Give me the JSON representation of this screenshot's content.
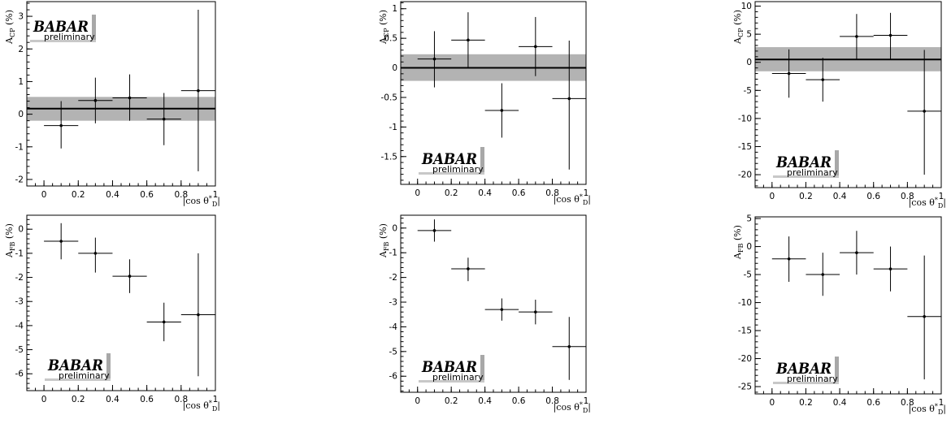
{
  "figure": {
    "logo": {
      "name": "BABAR",
      "sub": "preliminary"
    }
  },
  "chart_data": [
    {
      "type": "scatter",
      "ylabel": "A_CP (%)",
      "xlabel": "|cos θ*_D|",
      "xlim": [
        -0.1,
        1.0
      ],
      "ylim": [
        -2.2,
        3.45
      ],
      "xticks": [
        0,
        0.2,
        0.4,
        0.6,
        0.8,
        1
      ],
      "xtick_labels": [
        "0",
        "0.2",
        "0.4",
        "0.6",
        "0.8",
        "1"
      ],
      "yticks": [
        -2,
        -1,
        0,
        1,
        2,
        3
      ],
      "ytick_labels": [
        "-2",
        "-1",
        "0",
        "1",
        "2",
        "3"
      ],
      "x": [
        0.1,
        0.3,
        0.5,
        0.7,
        0.9
      ],
      "x_err": [
        0.1,
        0.1,
        0.1,
        0.1,
        0.1
      ],
      "y": [
        -0.35,
        0.42,
        0.5,
        -0.15,
        0.72
      ],
      "y_err_low": [
        0.7,
        0.7,
        0.7,
        0.8,
        2.47
      ],
      "y_err_high": [
        0.75,
        0.7,
        0.72,
        0.8,
        2.48
      ],
      "fit": {
        "value": 0.17,
        "band": [
          -0.2,
          0.53
        ]
      },
      "logo_position": "top-left"
    },
    {
      "type": "scatter",
      "ylabel": "A_CP (%)",
      "xlabel": "|cos θ*_D|",
      "xlim": [
        -0.1,
        1.0
      ],
      "ylim": [
        -1.97,
        1.12
      ],
      "xticks": [
        0,
        0.2,
        0.4,
        0.6,
        0.8,
        1
      ],
      "xtick_labels": [
        "0",
        "0.2",
        "0.4",
        "0.6",
        "0.8",
        "1"
      ],
      "yticks": [
        -1.5,
        -1,
        -0.5,
        0,
        0.5,
        1
      ],
      "ytick_labels": [
        "-1.5",
        "-1",
        "-0.5",
        "0",
        "0.5",
        "1"
      ],
      "x": [
        0.1,
        0.3,
        0.5,
        0.7,
        0.9
      ],
      "x_err": [
        0.1,
        0.1,
        0.1,
        0.1,
        0.1
      ],
      "y": [
        0.15,
        0.47,
        -0.72,
        0.36,
        -0.52
      ],
      "y_err_low": [
        0.48,
        0.47,
        0.46,
        0.5,
        1.2
      ],
      "y_err_high": [
        0.47,
        0.47,
        0.46,
        0.5,
        0.98
      ],
      "fit": {
        "value": 0.0,
        "band": [
          -0.22,
          0.23
        ]
      },
      "logo_position": "bottom-left"
    },
    {
      "type": "scatter",
      "ylabel": "A_CP (%)",
      "xlabel": "|cos θ*_D|",
      "xlim": [
        -0.1,
        1.0
      ],
      "ylim": [
        -22.3,
        10.8
      ],
      "xticks": [
        0,
        0.2,
        0.4,
        0.6,
        0.8,
        1
      ],
      "xtick_labels": [
        "0",
        "0.2",
        "0.4",
        "0.6",
        "0.8",
        "1"
      ],
      "yticks": [
        -20,
        -15,
        -10,
        -5,
        0,
        5,
        10
      ],
      "ytick_labels": [
        "-20",
        "-15",
        "-10",
        "-5",
        "0",
        "5",
        "10"
      ],
      "x": [
        0.1,
        0.3,
        0.5,
        0.7,
        0.9
      ],
      "x_err": [
        0.1,
        0.1,
        0.1,
        0.1,
        0.1
      ],
      "y": [
        -2.0,
        -3.1,
        4.6,
        4.8,
        -8.7
      ],
      "y_err_low": [
        4.3,
        3.9,
        4.2,
        4.3,
        11.3
      ],
      "y_err_high": [
        4.3,
        3.9,
        4.0,
        4.0,
        10.9
      ],
      "fit": {
        "value": 0.5,
        "band": [
          -1.6,
          2.7
        ]
      },
      "logo_position": "bottom-left"
    },
    {
      "type": "scatter",
      "ylabel": "A_FB (%)",
      "xlabel": "|cos θ*_D|",
      "xlim": [
        -0.1,
        1.0
      ],
      "ylim": [
        -6.7,
        0.58
      ],
      "xticks": [
        0,
        0.2,
        0.4,
        0.6,
        0.8,
        1
      ],
      "xtick_labels": [
        "0",
        "0.2",
        "0.4",
        "0.6",
        "0.8",
        "1"
      ],
      "yticks": [
        -6,
        -5,
        -4,
        -3,
        -2,
        -1,
        0
      ],
      "ytick_labels": [
        "-6",
        "-5",
        "-4",
        "-3",
        "-2",
        "-1",
        "0"
      ],
      "x": [
        0.1,
        0.3,
        0.5,
        0.7,
        0.9
      ],
      "x_err": [
        0.1,
        0.1,
        0.1,
        0.1,
        0.1
      ],
      "y": [
        -0.5,
        -1.0,
        -1.95,
        -3.85,
        -3.55
      ],
      "y_err_low": [
        0.75,
        0.8,
        0.7,
        0.8,
        2.55
      ],
      "y_err_high": [
        0.75,
        0.65,
        0.7,
        0.8,
        2.55
      ],
      "logo_position": "bottom-left"
    },
    {
      "type": "scatter",
      "ylabel": "A_FB (%)",
      "xlabel": "|cos θ*_D|",
      "xlim": [
        -0.1,
        1.0
      ],
      "ylim": [
        -6.65,
        0.52
      ],
      "xticks": [
        0,
        0.2,
        0.4,
        0.6,
        0.8,
        1
      ],
      "xtick_labels": [
        "0",
        "0.2",
        "0.4",
        "0.6",
        "0.8",
        "1"
      ],
      "yticks": [
        -6,
        -5,
        -4,
        -3,
        -2,
        -1,
        0
      ],
      "ytick_labels": [
        "-6",
        "-5",
        "-4",
        "-3",
        "-2",
        "-1",
        "0"
      ],
      "x": [
        0.1,
        0.3,
        0.5,
        0.7,
        0.9
      ],
      "x_err": [
        0.1,
        0.1,
        0.1,
        0.1,
        0.1
      ],
      "y": [
        -0.1,
        -1.65,
        -3.3,
        -3.4,
        -4.8
      ],
      "y_err_low": [
        0.45,
        0.5,
        0.45,
        0.5,
        1.35
      ],
      "y_err_high": [
        0.45,
        0.45,
        0.45,
        0.5,
        1.2
      ],
      "logo_position": "bottom-left"
    },
    {
      "type": "scatter",
      "ylabel": "A_FB (%)",
      "xlabel": "|cos θ*_D|",
      "xlim": [
        -0.1,
        1.0
      ],
      "ylim": [
        -26.3,
        5.3
      ],
      "xticks": [
        0,
        0.2,
        0.4,
        0.6,
        0.8,
        1
      ],
      "xtick_labels": [
        "0",
        "0.2",
        "0.4",
        "0.6",
        "0.8",
        "1"
      ],
      "yticks": [
        -25,
        -20,
        -15,
        -10,
        -5,
        0,
        5
      ],
      "ytick_labels": [
        "-25",
        "-20",
        "-15",
        "-10",
        "-5",
        "0",
        "5"
      ],
      "x": [
        0.1,
        0.3,
        0.5,
        0.7,
        0.9
      ],
      "x_err": [
        0.1,
        0.1,
        0.1,
        0.1,
        0.1
      ],
      "y": [
        -2.2,
        -5.0,
        -1.1,
        -4.0,
        -12.5
      ],
      "y_err_low": [
        4.1,
        3.8,
        3.9,
        4.0,
        11.2
      ],
      "y_err_high": [
        4.0,
        3.9,
        3.9,
        4.0,
        10.9
      ],
      "logo_position": "bottom-left"
    }
  ]
}
